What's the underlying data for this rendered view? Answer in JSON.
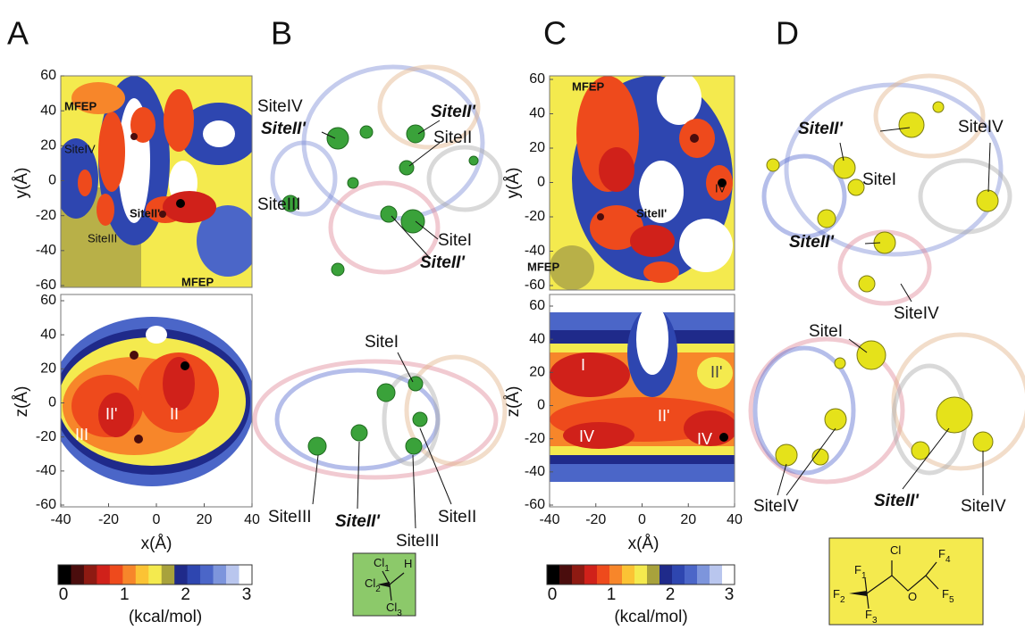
{
  "panels": [
    {
      "letter": "A",
      "top": {
        "axis_label": "y(Å)",
        "yticks": [
          60,
          40,
          20,
          0,
          -20,
          -40,
          -60
        ],
        "annotations": [
          "MFEP",
          "SiteIV",
          "SiteII'",
          "SiteIII",
          "MFEP"
        ]
      },
      "bottom": {
        "axis_label": "z(Å)",
        "yticks": [
          60,
          40,
          20,
          0,
          -20,
          -40,
          -60
        ],
        "xticks": [
          -40,
          -20,
          0,
          20,
          40
        ],
        "x_label": "x(Å)",
        "annotations": [
          "III",
          "II'",
          "II"
        ]
      },
      "colorbar": {
        "ticks": [
          0,
          1,
          2,
          3
        ],
        "label": "(kcal/mol)"
      }
    },
    {
      "letter": "B",
      "labels": [
        "SiteIV",
        "SiteII'",
        "SiteII'",
        "SiteII",
        "SiteIII",
        "SiteI",
        "SiteII'",
        "SiteI",
        "SiteIII",
        "SiteII'",
        "SiteII",
        "SiteIII"
      ],
      "molecule": {
        "atoms": [
          {
            "symbol": "Cl",
            "sub": "1"
          },
          {
            "symbol": "H"
          },
          {
            "symbol": "Cl",
            "sub": "2"
          },
          {
            "symbol": "Cl",
            "sub": "3"
          }
        ]
      }
    },
    {
      "letter": "C",
      "top": {
        "axis_label": "y(Å)",
        "yticks": [
          60,
          40,
          20,
          0,
          -20,
          -40,
          -60
        ],
        "annotations": [
          "MFEP",
          "SiteII'",
          "IV",
          "MFEP"
        ]
      },
      "bottom": {
        "axis_label": "z(Å)",
        "yticks": [
          60,
          40,
          20,
          0,
          -20,
          -40,
          -60
        ],
        "xticks": [
          -40,
          -20,
          0,
          20,
          40
        ],
        "x_label": "x(Å)",
        "annotations": [
          "I",
          "II'",
          "IV",
          "II'",
          "IV"
        ]
      },
      "colorbar": {
        "ticks": [
          0,
          1,
          2,
          3
        ],
        "label": "(kcal/mol)"
      }
    },
    {
      "letter": "D",
      "labels": [
        "SiteII'",
        "SiteIV",
        "SiteI",
        "SiteII'",
        "SiteIV",
        "SiteI",
        "SiteIV",
        "SiteII'",
        "SiteIV"
      ],
      "molecule": {
        "atoms": [
          {
            "symbol": "Cl"
          },
          {
            "symbol": "F",
            "sub": "1"
          },
          {
            "symbol": "F",
            "sub": "2"
          },
          {
            "symbol": "O"
          },
          {
            "symbol": "F",
            "sub": "4"
          },
          {
            "symbol": "F",
            "sub": "5"
          },
          {
            "symbol": "F",
            "sub": "3"
          }
        ]
      }
    }
  ],
  "colorbar_colors": [
    "#000000",
    "#4a0d0d",
    "#8e1a12",
    "#d0211a",
    "#ee4a1c",
    "#f7862a",
    "#fbc334",
    "#f4ea4e",
    "#a8a23c",
    "#1f2a8a",
    "#2e46b0",
    "#4b66c8",
    "#7d95dc",
    "#b9c6ee",
    "#ffffff"
  ]
}
